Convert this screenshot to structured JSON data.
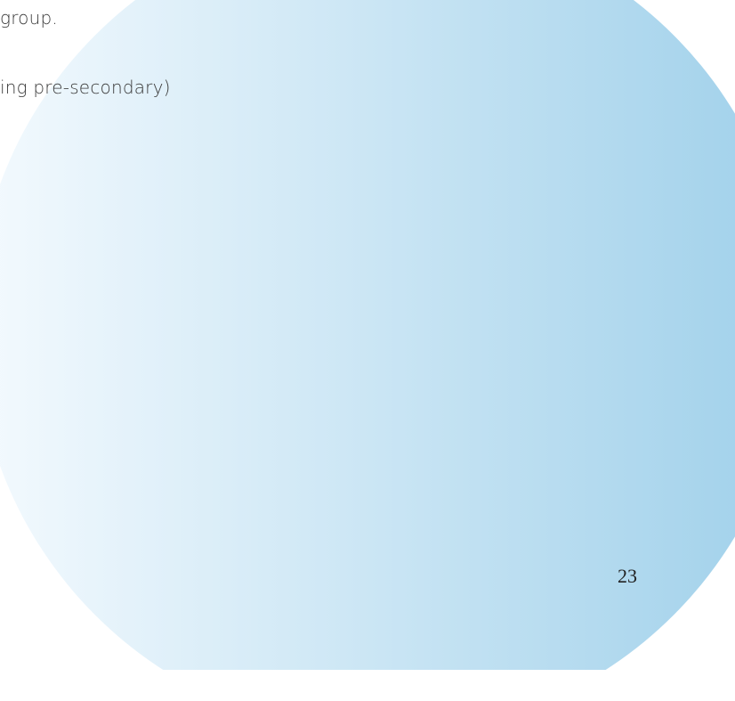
{
  "document": {
    "lines": [
      "group.",
      "ing pre-secondary)"
    ],
    "page_number": "23"
  },
  "decoration": {
    "circle_color_start": "#f4fafe",
    "circle_color_end": "#9fd0ea"
  }
}
